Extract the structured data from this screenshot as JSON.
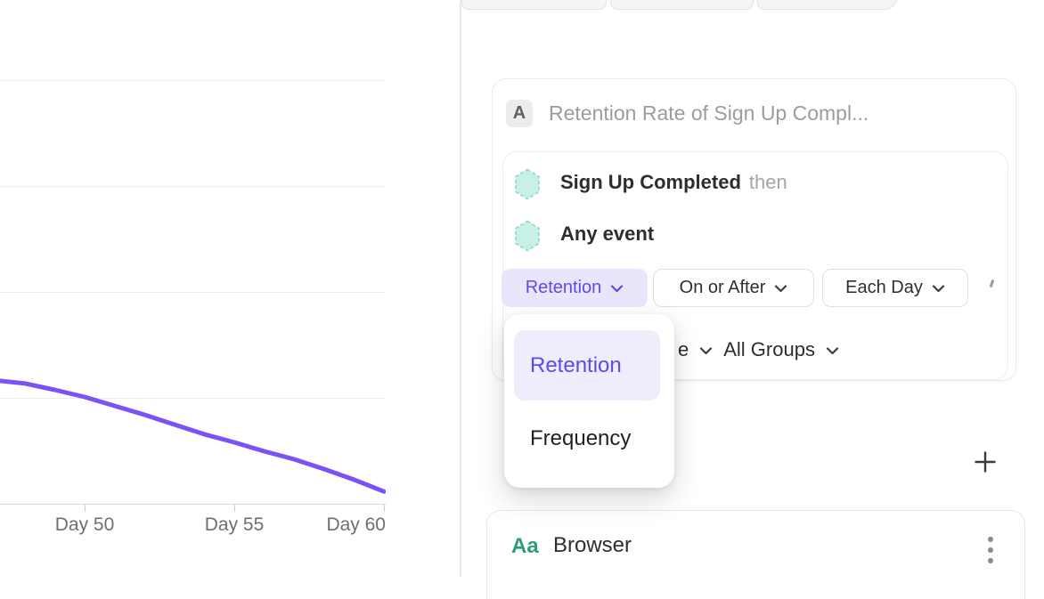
{
  "chart_data": {
    "type": "line",
    "title": "",
    "x_tick_labels": [
      "Day 50",
      "Day 55",
      "Day 60"
    ],
    "x_axis_label": "",
    "y_axis_label": "",
    "y_axis_note": "y-axis value labels are cropped out of view; values given as fraction of visible plot height above the x-axis",
    "gridlines": true,
    "legend": "none",
    "series": [
      {
        "name": "Retention Rate of Sign Up Completed",
        "color": "#7a52f5",
        "points": [
          {
            "day": 47.2,
            "v": 0.29
          },
          {
            "day": 48,
            "v": 0.284
          },
          {
            "day": 49,
            "v": 0.269
          },
          {
            "day": 50,
            "v": 0.252
          },
          {
            "day": 51,
            "v": 0.231
          },
          {
            "day": 52,
            "v": 0.21
          },
          {
            "day": 53,
            "v": 0.187
          },
          {
            "day": 54,
            "v": 0.164
          },
          {
            "day": 55,
            "v": 0.145
          },
          {
            "day": 56,
            "v": 0.124
          },
          {
            "day": 57,
            "v": 0.105
          },
          {
            "day": 58,
            "v": 0.082
          },
          {
            "day": 59,
            "v": 0.057
          },
          {
            "day": 60,
            "v": 0.029
          }
        ]
      }
    ]
  },
  "builder": {
    "metric_card": {
      "badge": "A",
      "title": "Retention Rate of Sign Up Compl...",
      "events": [
        {
          "icon": "hexagon-teal",
          "name": "Sign Up Completed",
          "suffix": "then"
        },
        {
          "icon": "hexagon-teal",
          "name": "Any event",
          "suffix": ""
        }
      ],
      "controls": [
        {
          "label": "Retention",
          "active": true
        },
        {
          "label": "On or After",
          "active": false
        },
        {
          "label": "Each Day",
          "active": false
        }
      ],
      "group_row": {
        "clipped_fragment": "e",
        "all_groups": "All Groups"
      }
    },
    "dropdown": {
      "items": [
        {
          "label": "Retention",
          "selected": true
        },
        {
          "label": "Frequency",
          "selected": false
        }
      ]
    },
    "add_button_glyph": "+",
    "property_card": {
      "type_badge": "Aa",
      "name": "Browser"
    }
  },
  "colors": {
    "accent_purple": "#5b4be8",
    "accent_purple_bg": "#e9e5fb",
    "dropdown_selected_bg": "#efecfb",
    "line_purple": "#7a52f5",
    "hexagon_fill": "#c9f0e6",
    "hexagon_stroke": "#82deca",
    "property_green": "#2f9c78"
  }
}
